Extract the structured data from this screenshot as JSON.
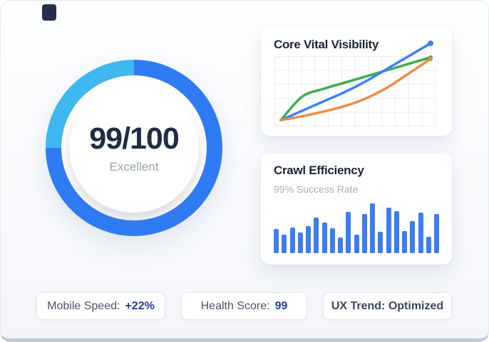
{
  "gauge": {
    "display": "99/100",
    "label": "Excellent"
  },
  "pills": [
    {
      "label": "Mobile Speed:",
      "value": "+22%"
    },
    {
      "label": "Health Score:",
      "value": "99"
    },
    {
      "label": "UX Trend: Optimized",
      "value": ""
    }
  ],
  "colors": {
    "gauge_primary": "#2e7bf3",
    "gauge_secondary": "#3fb7f0",
    "bar_blue": "#3b7df2",
    "value_navy": "#1e3f9e"
  },
  "chart_data": [
    {
      "type": "line",
      "title": "Core Vital Visibility",
      "x": [
        0,
        1,
        2,
        3,
        4,
        5,
        6,
        7
      ],
      "series": [
        {
          "name": "green-series",
          "color": "#3cae4e",
          "values": [
            10,
            40,
            50,
            58,
            66,
            74,
            82,
            90
          ],
          "end_dot": 3
        },
        {
          "name": "blue-series",
          "color": "#3b82f6",
          "values": [
            10,
            22,
            34,
            46,
            60,
            76,
            92,
            108
          ],
          "end_dot": 4
        },
        {
          "name": "orange-series",
          "color": "#ee8c42",
          "values": [
            10,
            15,
            21,
            28,
            38,
            52,
            70,
            88
          ],
          "end_dot": 3
        }
      ],
      "grid": true,
      "axes_labels": "none",
      "legend": "none"
    },
    {
      "type": "bar",
      "title": "Crawl Efficiency",
      "subtitle": "99% Success Rate",
      "values": [
        48,
        37,
        52,
        41,
        54,
        71,
        61,
        50,
        32,
        83,
        37,
        78,
        100,
        43,
        92,
        84,
        45,
        64,
        82,
        33,
        79
      ],
      "ylim": [
        0,
        100
      ],
      "legend": "none"
    },
    {
      "type": "gauge",
      "value": 99,
      "max": 100,
      "fraction_secondary_arc": 0.25
    }
  ]
}
